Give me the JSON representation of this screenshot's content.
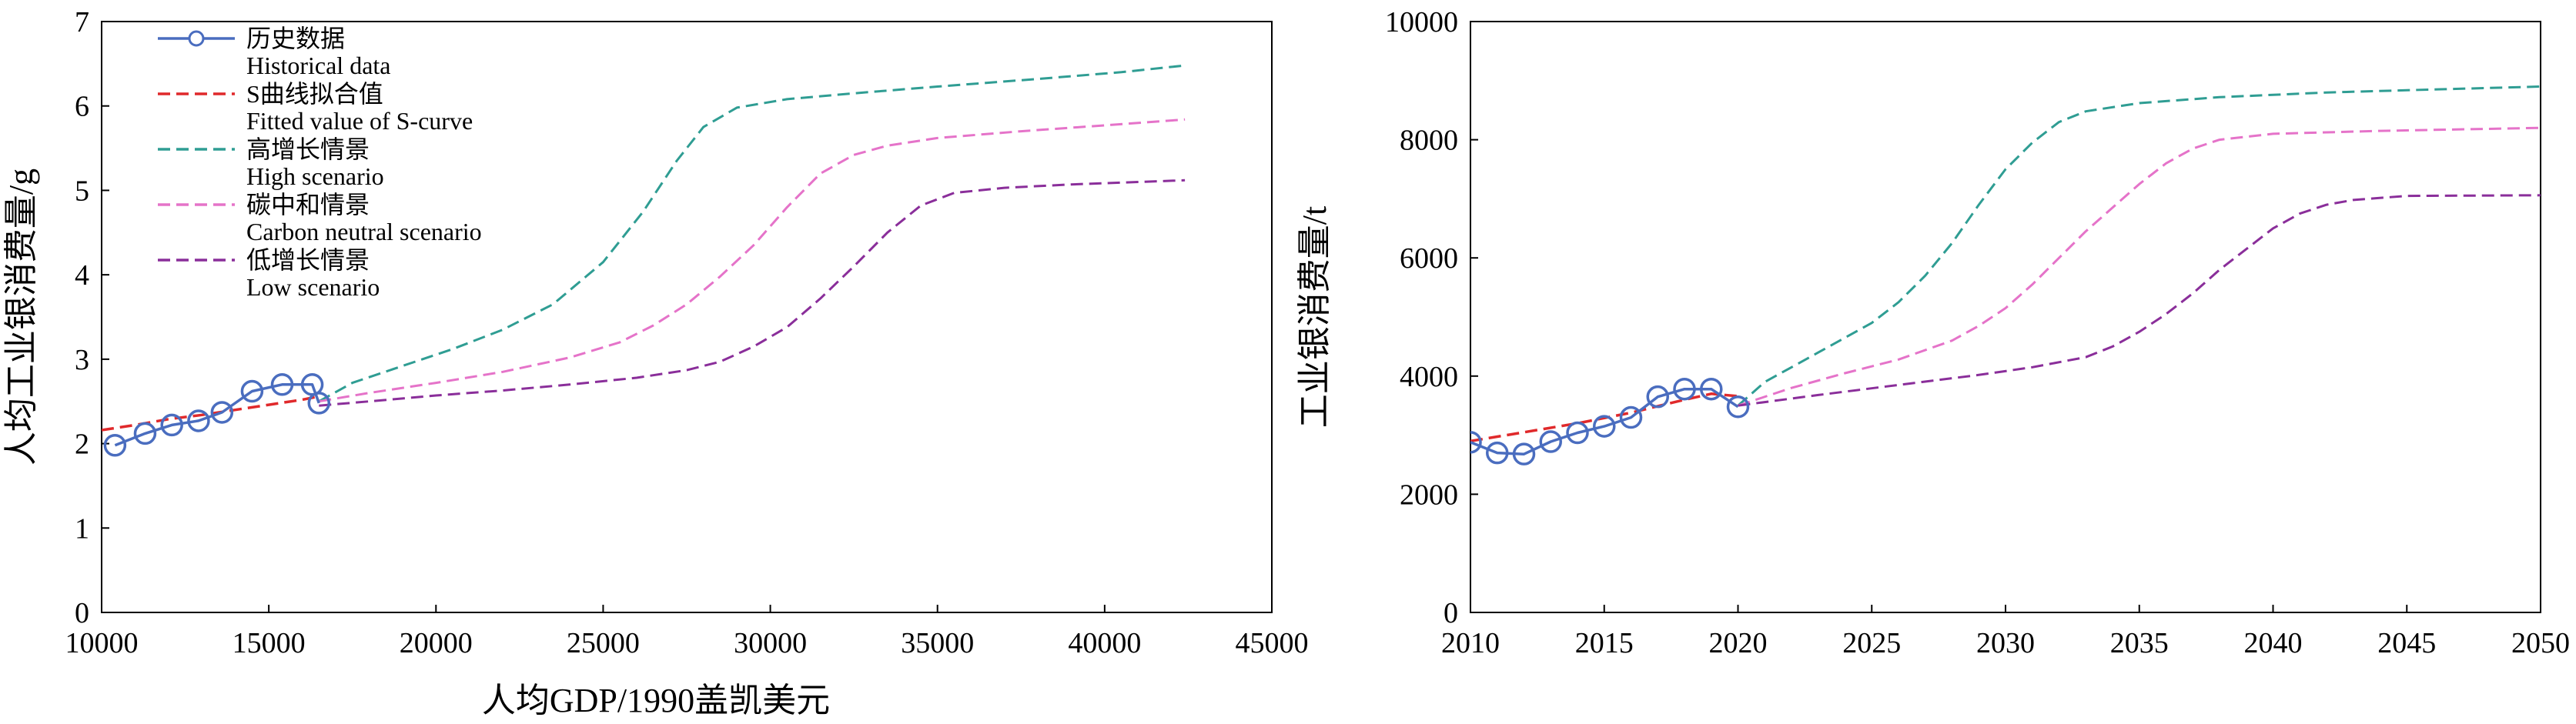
{
  "colors": {
    "historical": "#4a6dbf",
    "fitted": "#e0292b",
    "high": "#2f9d93",
    "carbon_neutral": "#e573c9",
    "low": "#8a2e9a",
    "axis": "#000000"
  },
  "chart_data": [
    {
      "type": "line",
      "xlabel": "人均GDP/1990盖凯美元",
      "ylabel": "人均工业银消费量/g",
      "xlim": [
        10000,
        45000
      ],
      "ylim": [
        0,
        7
      ],
      "xticks": [
        "10000",
        "15000",
        "20000",
        "25000",
        "30000",
        "35000",
        "40000",
        "45000"
      ],
      "yticks": [
        "0",
        "1",
        "2",
        "3",
        "4",
        "5",
        "6",
        "7"
      ],
      "grid": false,
      "legend_position": "top-left",
      "series": [
        {
          "key": "historical",
          "name": "历史数据",
          "name_en": "Historical data",
          "style": "solid-markers",
          "points": [
            [
              10400,
              1.98
            ],
            [
              11300,
              2.12
            ],
            [
              12100,
              2.22
            ],
            [
              12900,
              2.27
            ],
            [
              13600,
              2.37
            ],
            [
              14500,
              2.62
            ],
            [
              15400,
              2.7
            ],
            [
              16300,
              2.7
            ],
            [
              16500,
              2.48
            ]
          ]
        },
        {
          "key": "fitted",
          "name": "S曲线拟合值",
          "name_en": "Fitted value of S-curve",
          "style": "dashed",
          "points": [
            [
              10000,
              2.16
            ],
            [
              11000,
              2.22
            ],
            [
              12000,
              2.29
            ],
            [
              13000,
              2.34
            ],
            [
              14000,
              2.4
            ],
            [
              15000,
              2.46
            ],
            [
              16000,
              2.52
            ],
            [
              16500,
              2.56
            ]
          ]
        },
        {
          "key": "high",
          "name": "高增长情景",
          "name_en": "High scenario",
          "style": "dashed",
          "points": [
            [
              16500,
              2.5
            ],
            [
              17500,
              2.72
            ],
            [
              19000,
              2.92
            ],
            [
              20500,
              3.12
            ],
            [
              22000,
              3.35
            ],
            [
              23500,
              3.65
            ],
            [
              25000,
              4.15
            ],
            [
              26200,
              4.75
            ],
            [
              27200,
              5.35
            ],
            [
              28000,
              5.75
            ],
            [
              29000,
              5.98
            ],
            [
              30500,
              6.08
            ],
            [
              32500,
              6.15
            ],
            [
              35000,
              6.23
            ],
            [
              38000,
              6.32
            ],
            [
              40500,
              6.4
            ],
            [
              42400,
              6.48
            ]
          ]
        },
        {
          "key": "carbon_neutral",
          "name": "碳中和情景",
          "name_en": "Carbon neutral scenario",
          "style": "dashed",
          "points": [
            [
              16500,
              2.5
            ],
            [
              18000,
              2.6
            ],
            [
              20000,
              2.72
            ],
            [
              22000,
              2.85
            ],
            [
              24000,
              3.02
            ],
            [
              25500,
              3.2
            ],
            [
              26500,
              3.4
            ],
            [
              27500,
              3.65
            ],
            [
              28500,
              3.98
            ],
            [
              29500,
              4.35
            ],
            [
              30500,
              4.8
            ],
            [
              31500,
              5.2
            ],
            [
              32500,
              5.42
            ],
            [
              33500,
              5.53
            ],
            [
              35000,
              5.62
            ],
            [
              37500,
              5.7
            ],
            [
              40000,
              5.77
            ],
            [
              42400,
              5.84
            ]
          ]
        },
        {
          "key": "low",
          "name": "低增长情景",
          "name_en": "Low scenario",
          "style": "dashed",
          "points": [
            [
              16500,
              2.45
            ],
            [
              18000,
              2.5
            ],
            [
              20000,
              2.57
            ],
            [
              22000,
              2.63
            ],
            [
              24000,
              2.7
            ],
            [
              26000,
              2.78
            ],
            [
              27500,
              2.87
            ],
            [
              28500,
              2.97
            ],
            [
              29500,
              3.15
            ],
            [
              30500,
              3.38
            ],
            [
              31500,
              3.72
            ],
            [
              32500,
              4.1
            ],
            [
              33500,
              4.5
            ],
            [
              34500,
              4.82
            ],
            [
              35500,
              4.97
            ],
            [
              37000,
              5.03
            ],
            [
              39000,
              5.07
            ],
            [
              41000,
              5.1
            ],
            [
              42400,
              5.12
            ]
          ]
        }
      ]
    },
    {
      "type": "line",
      "xlabel": "",
      "ylabel": "工业银消费量/t",
      "xlim": [
        2010,
        2050
      ],
      "ylim": [
        0,
        10000
      ],
      "xticks": [
        "2010",
        "2015",
        "2020",
        "2025",
        "2030",
        "2035",
        "2040",
        "2045",
        "2050"
      ],
      "yticks": [
        "0",
        "2000",
        "4000",
        "6000",
        "8000",
        "10000"
      ],
      "grid": false,
      "series": [
        {
          "key": "historical",
          "style": "solid-markers",
          "points": [
            [
              2010,
              2880
            ],
            [
              2011,
              2700
            ],
            [
              2012,
              2680
            ],
            [
              2013,
              2890
            ],
            [
              2014,
              3040
            ],
            [
              2015,
              3150
            ],
            [
              2016,
              3300
            ],
            [
              2017,
              3650
            ],
            [
              2018,
              3780
            ],
            [
              2019,
              3780
            ],
            [
              2020,
              3480
            ]
          ]
        },
        {
          "key": "fitted",
          "style": "dashed",
          "points": [
            [
              2010,
              2900
            ],
            [
              2012,
              3050
            ],
            [
              2014,
              3200
            ],
            [
              2016,
              3380
            ],
            [
              2018,
              3600
            ],
            [
              2019,
              3700
            ],
            [
              2020,
              3660
            ]
          ]
        },
        {
          "key": "high",
          "style": "dashed",
          "points": [
            [
              2020,
              3500
            ],
            [
              2021,
              3900
            ],
            [
              2023,
              4400
            ],
            [
              2025,
              4900
            ],
            [
              2026,
              5250
            ],
            [
              2027,
              5700
            ],
            [
              2028,
              6250
            ],
            [
              2029,
              6900
            ],
            [
              2030,
              7500
            ],
            [
              2031,
              7950
            ],
            [
              2032,
              8300
            ],
            [
              2033,
              8480
            ],
            [
              2035,
              8620
            ],
            [
              2038,
              8720
            ],
            [
              2042,
              8800
            ],
            [
              2046,
              8850
            ],
            [
              2050,
              8900
            ]
          ]
        },
        {
          "key": "carbon_neutral",
          "style": "dashed",
          "points": [
            [
              2020,
              3500
            ],
            [
              2022,
              3800
            ],
            [
              2024,
              4050
            ],
            [
              2026,
              4280
            ],
            [
              2028,
              4600
            ],
            [
              2029,
              4850
            ],
            [
              2030,
              5150
            ],
            [
              2031,
              5550
            ],
            [
              2032,
              6000
            ],
            [
              2033,
              6450
            ],
            [
              2034,
              6850
            ],
            [
              2035,
              7250
            ],
            [
              2036,
              7600
            ],
            [
              2037,
              7850
            ],
            [
              2038,
              8000
            ],
            [
              2040,
              8100
            ],
            [
              2044,
              8150
            ],
            [
              2050,
              8200
            ]
          ]
        },
        {
          "key": "low",
          "style": "dashed",
          "points": [
            [
              2020,
              3500
            ],
            [
              2023,
              3680
            ],
            [
              2026,
              3850
            ],
            [
              2029,
              4020
            ],
            [
              2031,
              4150
            ],
            [
              2033,
              4320
            ],
            [
              2034,
              4500
            ],
            [
              2035,
              4750
            ],
            [
              2036,
              5050
            ],
            [
              2037,
              5400
            ],
            [
              2038,
              5800
            ],
            [
              2039,
              6150
            ],
            [
              2040,
              6500
            ],
            [
              2041,
              6750
            ],
            [
              2042,
              6900
            ],
            [
              2043,
              6980
            ],
            [
              2045,
              7050
            ],
            [
              2050,
              7060
            ]
          ]
        }
      ]
    }
  ]
}
